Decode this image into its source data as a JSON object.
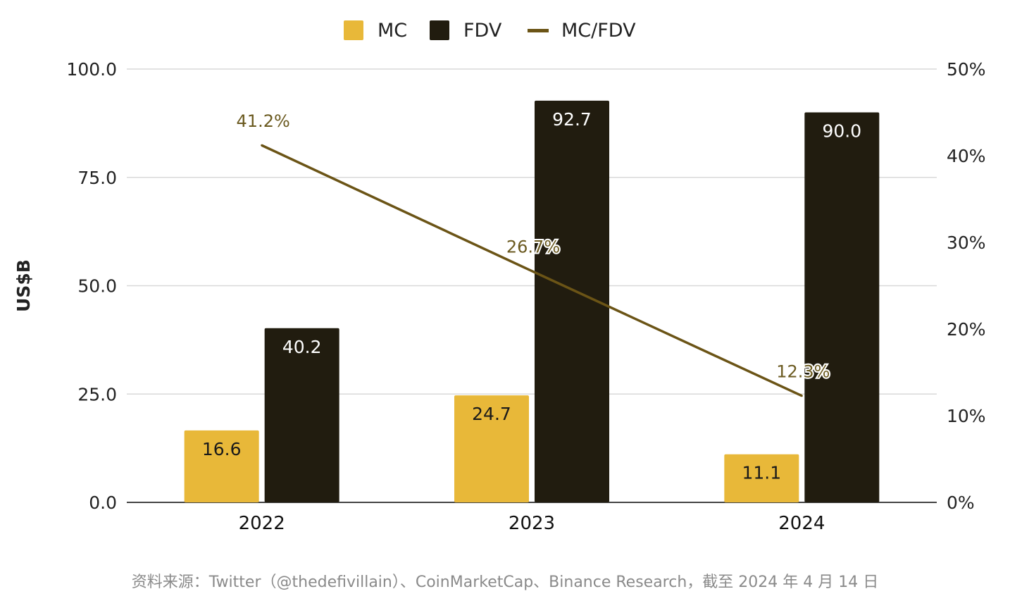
{
  "chart_data": {
    "type": "bar",
    "categories": [
      "2022",
      "2023",
      "2024"
    ],
    "series": [
      {
        "name": "MC",
        "kind": "bar",
        "axis": "left",
        "color": "#E8B839",
        "values": [
          16.6,
          24.7,
          11.1
        ],
        "labels": [
          "16.6",
          "24.7",
          "11.1"
        ]
      },
      {
        "name": "FDV",
        "kind": "bar",
        "axis": "left",
        "color": "#211C0F",
        "values": [
          40.2,
          92.7,
          90.0
        ],
        "labels": [
          "40.2",
          "92.7",
          "90.0"
        ]
      },
      {
        "name": "MC/FDV",
        "kind": "line",
        "axis": "right",
        "color": "#6B5416",
        "values": [
          41.2,
          26.7,
          12.3
        ],
        "labels": [
          "41.2%",
          "26.7%",
          "12.3%"
        ]
      }
    ],
    "ylabel": "US$B",
    "ylim": [
      0,
      100
    ],
    "y2lim": [
      0,
      50
    ],
    "y_ticks": [
      "0.0",
      "25.0",
      "50.0",
      "75.0",
      "100.0"
    ],
    "y2_ticks": [
      "0%",
      "10%",
      "20%",
      "30%",
      "40%",
      "50%"
    ],
    "grid": true,
    "legend": "top-center",
    "colors": {
      "mc": "#E8B839",
      "fdv": "#211C0F",
      "ratio": "#6B5416",
      "grid": "#d9d9d9",
      "axis": "#444444"
    }
  },
  "source": "资料来源：Twitter（@thedefivillain）、CoinMarketCap、Binance Research，截至 2024 年 4 月 14 日"
}
